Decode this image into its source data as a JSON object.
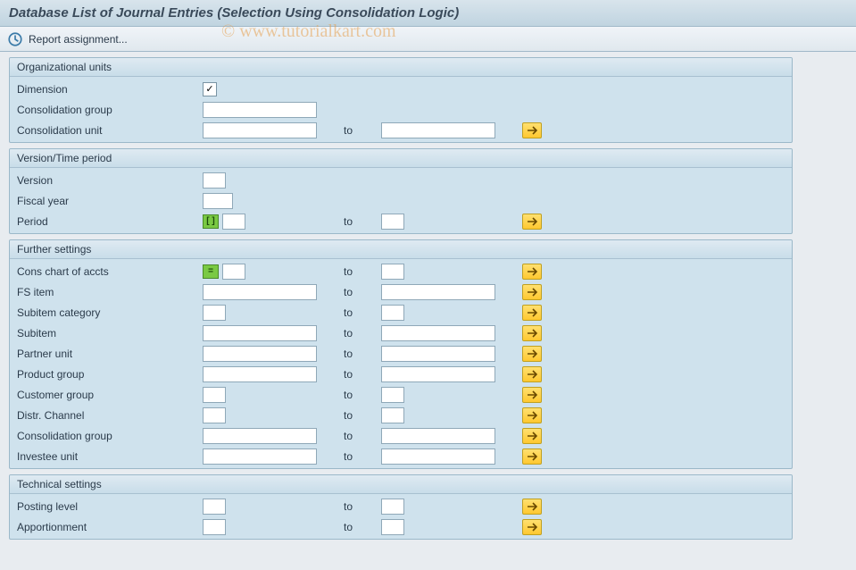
{
  "title": "Database List of Journal Entries (Selection Using Consolidation Logic)",
  "watermark": "© www.tutorialkart.com",
  "toolbar": {
    "report_assignment": "Report assignment..."
  },
  "to_label": "to",
  "groups": {
    "org": {
      "title": "Organizational units",
      "dimension": {
        "label": "Dimension",
        "checked": true
      },
      "cons_group": {
        "label": "Consolidation group",
        "from": ""
      },
      "cons_unit": {
        "label": "Consolidation unit",
        "from": "",
        "to": ""
      }
    },
    "version": {
      "title": "Version/Time period",
      "version": {
        "label": "Version",
        "from": ""
      },
      "fiscal_year": {
        "label": "Fiscal year",
        "from": ""
      },
      "period": {
        "label": "Period",
        "from": "",
        "to": "",
        "indicator": "[ ]"
      }
    },
    "further": {
      "title": "Further settings",
      "rows": [
        {
          "key": "cons_chart",
          "label": "Cons chart of accts",
          "from": "",
          "to": "",
          "indicator": "=",
          "short": true
        },
        {
          "key": "fs_item",
          "label": "FS item",
          "from": "",
          "to": "",
          "short": false
        },
        {
          "key": "subitem_cat",
          "label": "Subitem category",
          "from": "",
          "to": "",
          "short": true
        },
        {
          "key": "subitem",
          "label": "Subitem",
          "from": "",
          "to": "",
          "short": false
        },
        {
          "key": "partner_unit",
          "label": "Partner unit",
          "from": "",
          "to": "",
          "short": false
        },
        {
          "key": "product_group",
          "label": "Product group",
          "from": "",
          "to": "",
          "short": false
        },
        {
          "key": "customer_group",
          "label": "Customer group",
          "from": "",
          "to": "",
          "short": true
        },
        {
          "key": "distr_channel",
          "label": "Distr. Channel",
          "from": "",
          "to": "",
          "short": true
        },
        {
          "key": "cons_group2",
          "label": "Consolidation group",
          "from": "",
          "to": "",
          "short": false
        },
        {
          "key": "investee_unit",
          "label": "Investee unit",
          "from": "",
          "to": "",
          "short": false
        }
      ]
    },
    "technical": {
      "title": "Technical settings",
      "rows": [
        {
          "key": "posting_level",
          "label": "Posting level",
          "from": "",
          "to": "",
          "short": true
        },
        {
          "key": "apportionment",
          "label": "Apportionment",
          "from": "",
          "to": "",
          "short": true
        }
      ]
    }
  },
  "colors": {
    "title_bg_top": "#d8e4ec",
    "title_bg_bottom": "#c0d4e0",
    "group_bg": "#cfe2ed",
    "group_border": "#9bb8c9",
    "multi_btn_top": "#ffe070",
    "multi_btn_bottom": "#ffc830",
    "indicator_green": "#7ac943"
  }
}
